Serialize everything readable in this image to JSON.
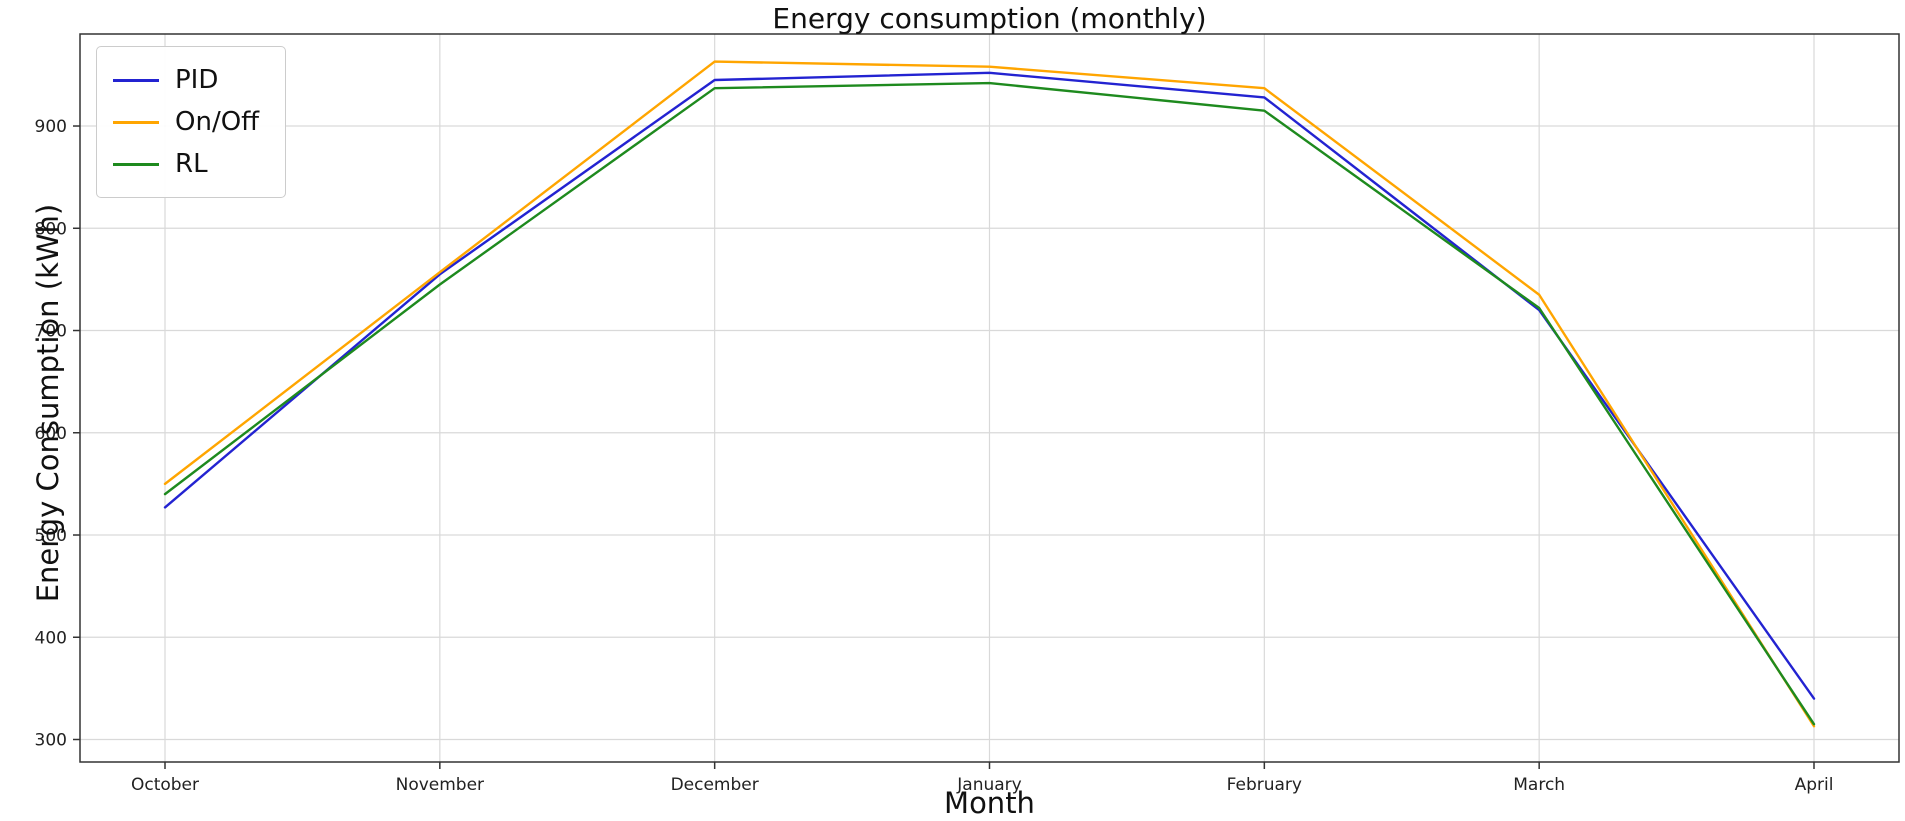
{
  "chart_data": {
    "type": "line",
    "title": "Energy consumption (monthly)",
    "xlabel": "Month",
    "ylabel": "Energy Consumption (kWh)",
    "categories": [
      "October",
      "November",
      "December",
      "January",
      "February",
      "March",
      "April"
    ],
    "series": [
      {
        "name": "PID",
        "color": "#2323d1",
        "values": [
          527,
          755,
          945,
          952,
          928,
          720,
          340
        ]
      },
      {
        "name": "On/Off",
        "color": "#ffa500",
        "values": [
          550,
          757,
          963,
          958,
          937,
          735,
          313
        ]
      },
      {
        "name": "RL",
        "color": "#1e8a1e",
        "values": [
          540,
          745,
          937,
          942,
          915,
          722,
          315
        ]
      }
    ],
    "ylim": [
      278,
      990
    ],
    "yticks": [
      300,
      400,
      500,
      600,
      700,
      800,
      900
    ],
    "grid": true,
    "legend_position": "upper left",
    "colors": {
      "grid": "#d9d9d9",
      "spine": "#333333",
      "tick_label": "#222222"
    }
  }
}
